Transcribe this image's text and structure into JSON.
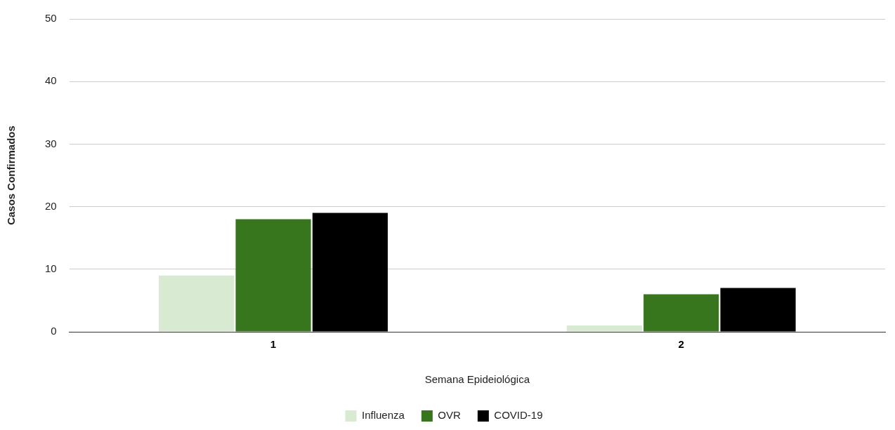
{
  "chart_data": {
    "type": "bar",
    "xlabel": "Semana Epideiológica",
    "ylabel": "Casos Confirmados",
    "categories": [
      "1",
      "2"
    ],
    "series": [
      {
        "name": "Influenza",
        "color": "#d9ead3",
        "values": [
          9,
          1
        ]
      },
      {
        "name": "OVR",
        "color": "#38761d",
        "values": [
          18,
          6
        ]
      },
      {
        "name": "COVID-19",
        "color": "#000000",
        "values": [
          19,
          7
        ]
      }
    ],
    "ylim": [
      0,
      50
    ],
    "yticks": [
      0,
      10,
      20,
      30,
      40,
      50
    ],
    "grid": "y",
    "legend": "bottom"
  }
}
